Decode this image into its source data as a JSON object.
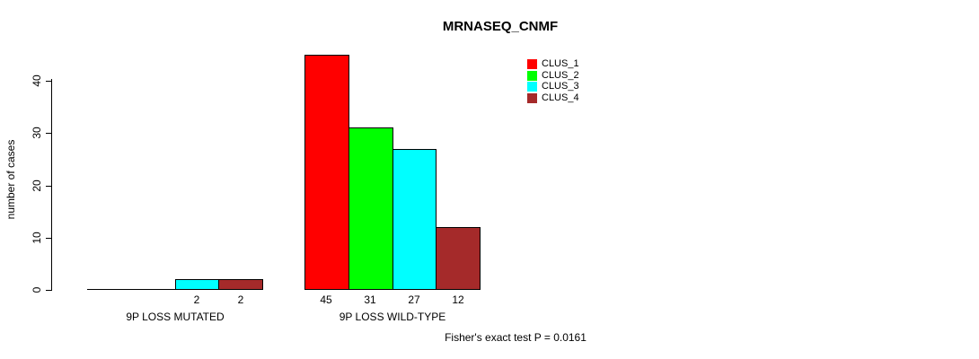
{
  "chart_data": {
    "type": "bar",
    "title": "MRNASEQ_CNMF",
    "ylabel": "number of cases",
    "xlabel": "",
    "ylim": [
      0,
      45
    ],
    "yticks": [
      0,
      10,
      20,
      30,
      40
    ],
    "grid": false,
    "legend_position": "top-right-inside",
    "categories": [
      "9P LOSS MUTATED",
      "9P LOSS WILD-TYPE"
    ],
    "series": [
      {
        "name": "CLUS_1",
        "color": "#FF0000",
        "values": [
          0,
          45
        ]
      },
      {
        "name": "CLUS_2",
        "color": "#00FF00",
        "values": [
          0,
          31
        ]
      },
      {
        "name": "CLUS_3",
        "color": "#00FFFF",
        "values": [
          2,
          27
        ]
      },
      {
        "name": "CLUS_4",
        "color": "#A52A2A",
        "values": [
          2,
          12
        ]
      }
    ],
    "bar_value_labels": [
      [
        "",
        "",
        "2",
        "2"
      ],
      [
        "45",
        "31",
        "27",
        "12"
      ]
    ],
    "annotation": "Fisher's exact test P = 0.0161",
    "axis_color": "#000000",
    "bar_border_color": "#000000",
    "background_color": "#FFFFFF"
  }
}
